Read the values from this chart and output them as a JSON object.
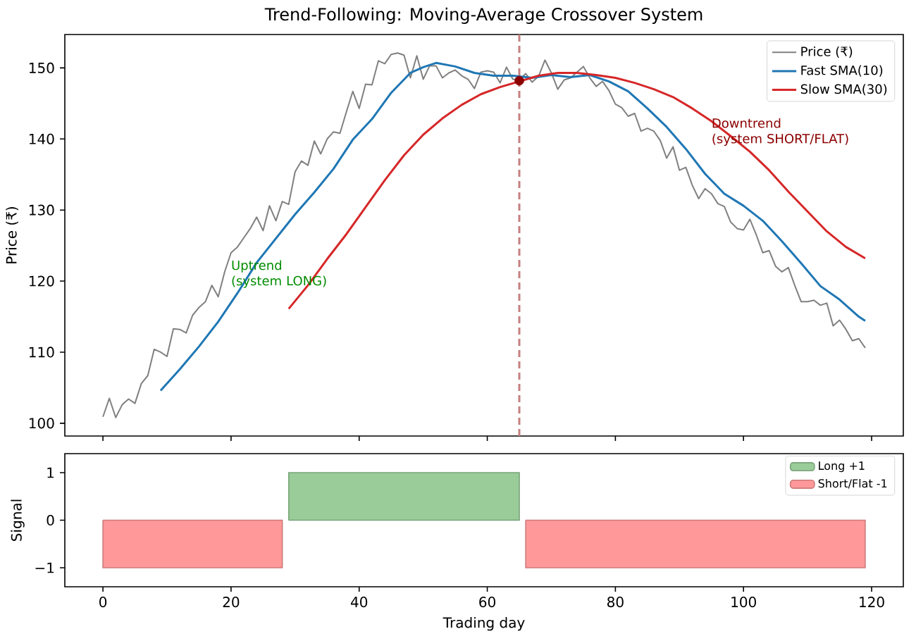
{
  "chart_data": [
    {
      "type": "line",
      "title": "Trend-Following: Moving-Average Crossover System",
      "ylabel": "Price (₹)",
      "x": [
        0,
        1,
        2,
        3,
        4,
        5,
        6,
        7,
        8,
        9,
        10,
        11,
        12,
        13,
        14,
        15,
        16,
        17,
        18,
        19,
        20,
        21,
        22,
        23,
        24,
        25,
        26,
        27,
        28,
        29,
        30,
        31,
        32,
        33,
        34,
        35,
        36,
        37,
        38,
        39,
        40,
        41,
        42,
        43,
        44,
        45,
        46,
        47,
        48,
        49,
        50,
        51,
        52,
        53,
        54,
        55,
        56,
        57,
        58,
        59,
        60,
        61,
        62,
        63,
        64,
        65,
        66,
        67,
        68,
        69,
        70,
        71,
        72,
        73,
        74,
        75,
        76,
        77,
        78,
        79,
        80,
        81,
        82,
        83,
        84,
        85,
        86,
        87,
        88,
        89,
        90,
        91,
        92,
        93,
        94,
        95,
        96,
        97,
        98,
        99,
        100,
        101,
        102,
        103,
        104,
        105,
        106,
        107,
        108,
        109,
        110,
        111,
        112,
        113,
        114,
        115,
        116,
        117,
        118,
        119
      ],
      "series": [
        {
          "name": "Price (₹)",
          "color": "#808080",
          "values": [
            100.9,
            103.5,
            100.8,
            102.6,
            103.4,
            102.8,
            105.6,
            106.7,
            110.4,
            110.0,
            109.4,
            113.3,
            113.2,
            112.7,
            115.2,
            116.3,
            117.1,
            119.4,
            117.8,
            121.3,
            124.0,
            124.8,
            126.1,
            127.4,
            129.0,
            127.1,
            130.6,
            128.5,
            131.2,
            130.8,
            135.4,
            136.9,
            136.3,
            139.7,
            137.9,
            140.0,
            141.0,
            140.8,
            143.8,
            146.7,
            144.3,
            147.7,
            147.6,
            151.0,
            150.6,
            151.9,
            152.1,
            151.8,
            148.6,
            151.7,
            148.4,
            150.3,
            150.3,
            148.6,
            149.3,
            149.7,
            148.9,
            148.4,
            147.1,
            149.4,
            149.6,
            149.4,
            147.9,
            150.1,
            148.4,
            148.3,
            149.2,
            148.0,
            148.8,
            151.1,
            149.3,
            147.0,
            148.3,
            148.6,
            149.4,
            150.2,
            148.6,
            147.4,
            148.1,
            146.8,
            144.9,
            144.4,
            143.2,
            143.6,
            141.1,
            141.5,
            141.1,
            139.8,
            137.3,
            138.9,
            135.6,
            136.0,
            133.5,
            131.6,
            133.0,
            132.3,
            130.9,
            130.5,
            128.3,
            127.4,
            127.2,
            128.7,
            126.5,
            124.0,
            124.3,
            122.1,
            121.3,
            121.9,
            119.4,
            117.1,
            117.1,
            117.3,
            116.6,
            116.9,
            113.7,
            114.5,
            113.2,
            111.6,
            111.9,
            110.6
          ]
        },
        {
          "name": "Fast SMA(10)",
          "color": "#1f77b4",
          "x": [
            9,
            12,
            15,
            18,
            21,
            24,
            27,
            30,
            33,
            36,
            39,
            42,
            45,
            48,
            50,
            52,
            55,
            58,
            61,
            64,
            67,
            70,
            73,
            76,
            79,
            82,
            85,
            88,
            91,
            94,
            97,
            100,
            103,
            106,
            109,
            112,
            115,
            118,
            119
          ],
          "values": [
            104.6,
            107.6,
            110.8,
            114.3,
            118.3,
            122.6,
            126.0,
            129.4,
            132.5,
            135.8,
            139.9,
            142.8,
            146.5,
            149.3,
            150.1,
            150.7,
            150.2,
            149.3,
            148.9,
            148.9,
            148.6,
            149.0,
            148.7,
            149.0,
            148.1,
            146.7,
            144.3,
            141.7,
            138.6,
            135.1,
            132.3,
            130.6,
            128.5,
            125.6,
            122.5,
            119.3,
            117.4,
            115.0,
            114.4
          ]
        },
        {
          "name": "Slow SMA(30)",
          "color": "#d62728",
          "x": [
            29,
            32,
            35,
            38,
            41,
            44,
            47,
            50,
            53,
            56,
            59,
            62,
            65,
            68,
            71,
            74,
            77,
            80,
            83,
            86,
            89,
            92,
            95,
            98,
            101,
            104,
            107,
            110,
            113,
            116,
            119
          ],
          "values": [
            116.1,
            119.4,
            123.1,
            126.6,
            130.4,
            134.2,
            137.7,
            140.6,
            142.9,
            144.8,
            146.3,
            147.3,
            148.1,
            148.9,
            149.3,
            149.3,
            149.0,
            148.6,
            147.9,
            147.0,
            145.9,
            144.3,
            142.5,
            140.4,
            138.2,
            135.6,
            132.6,
            129.8,
            127.0,
            124.8,
            123.2
          ]
        },
        {
          "type": "scatter",
          "color": "#8b0000",
          "x": [
            65
          ],
          "values": [
            148.2
          ]
        }
      ],
      "ref_lines": [
        {
          "axis": "x",
          "value": 65,
          "color": "#c57f7f",
          "line_style": "dashed"
        }
      ],
      "annotations": [
        "Uptrend\n(system LONG)",
        "Downtrend\n(system SHORT/FLAT)"
      ],
      "xlim": [
        -5.95,
        124.95
      ],
      "ylim": [
        98.2,
        154.7
      ],
      "xticks": [
        0,
        20,
        40,
        60,
        80,
        100,
        120
      ],
      "yticks": [
        100,
        110,
        120,
        130,
        140,
        150
      ],
      "tick_labels": "y",
      "legend": "top right"
    },
    {
      "type": "area",
      "xlabel": "Trading day",
      "ylabel": "Signal",
      "x": [
        0,
        1,
        2,
        3,
        4,
        5,
        6,
        7,
        8,
        9,
        10,
        11,
        12,
        13,
        14,
        15,
        16,
        17,
        18,
        19,
        20,
        21,
        22,
        23,
        24,
        25,
        26,
        27,
        28,
        29,
        30,
        31,
        32,
        33,
        34,
        35,
        36,
        37,
        38,
        39,
        40,
        41,
        42,
        43,
        44,
        45,
        46,
        47,
        48,
        49,
        50,
        51,
        52,
        53,
        54,
        55,
        56,
        57,
        58,
        59,
        60,
        61,
        62,
        63,
        64,
        65,
        66,
        67,
        68,
        69,
        70,
        71,
        72,
        73,
        74,
        75,
        76,
        77,
        78,
        79,
        80,
        81,
        82,
        83,
        84,
        85,
        86,
        87,
        88,
        89,
        90,
        91,
        92,
        93,
        94,
        95,
        96,
        97,
        98,
        99,
        100,
        101,
        102,
        103,
        104,
        105,
        106,
        107,
        108,
        109,
        110,
        111,
        112,
        113,
        114,
        115,
        116,
        117,
        118,
        119
      ],
      "series": [
        {
          "name": "Long +1",
          "color": "#99cc99",
          "values": [
            null,
            null,
            null,
            null,
            null,
            null,
            null,
            null,
            null,
            null,
            null,
            null,
            null,
            null,
            null,
            null,
            null,
            null,
            null,
            null,
            null,
            null,
            null,
            null,
            null,
            null,
            null,
            null,
            null,
            1,
            1,
            1,
            1,
            1,
            1,
            1,
            1,
            1,
            1,
            1,
            1,
            1,
            1,
            1,
            1,
            1,
            1,
            1,
            1,
            1,
            1,
            1,
            1,
            1,
            1,
            1,
            1,
            1,
            1,
            1,
            1,
            1,
            1,
            1,
            1,
            1,
            null,
            null,
            null,
            null,
            null,
            null,
            null,
            null,
            null,
            null,
            null,
            null,
            null,
            null,
            null,
            null,
            null,
            null,
            null,
            null,
            null,
            null,
            null,
            null,
            null,
            null,
            null,
            null,
            null,
            null,
            null,
            null,
            null,
            null,
            null,
            null,
            null,
            null,
            null,
            null,
            null,
            null,
            null,
            null,
            null,
            null,
            null,
            null,
            null,
            null,
            null,
            null,
            null,
            null
          ]
        },
        {
          "name": "Short/Flat -1",
          "color": "#ff9999",
          "values": [
            -1,
            -1,
            -1,
            -1,
            -1,
            -1,
            -1,
            -1,
            -1,
            -1,
            -1,
            -1,
            -1,
            -1,
            -1,
            -1,
            -1,
            -1,
            -1,
            -1,
            -1,
            -1,
            -1,
            -1,
            -1,
            -1,
            -1,
            -1,
            -1,
            null,
            null,
            null,
            null,
            null,
            null,
            null,
            null,
            null,
            null,
            null,
            null,
            null,
            null,
            null,
            null,
            null,
            null,
            null,
            null,
            null,
            null,
            null,
            null,
            null,
            null,
            null,
            null,
            null,
            null,
            null,
            null,
            null,
            null,
            null,
            null,
            null,
            -1,
            -1,
            -1,
            -1,
            -1,
            -1,
            -1,
            -1,
            -1,
            -1,
            -1,
            -1,
            -1,
            -1,
            -1,
            -1,
            -1,
            -1,
            -1,
            -1,
            -1,
            -1,
            -1,
            -1,
            -1,
            -1,
            -1,
            -1,
            -1,
            -1,
            -1,
            -1,
            -1,
            -1,
            -1,
            -1,
            -1,
            -1,
            -1,
            -1,
            -1,
            -1,
            -1,
            -1,
            -1,
            -1,
            -1,
            -1,
            -1,
            -1,
            -1,
            -1,
            -1,
            -1
          ]
        }
      ],
      "xlim": [
        -5.95,
        124.95
      ],
      "ylim": [
        -1.4,
        1.4
      ],
      "xticks": [
        0,
        20,
        40,
        60,
        80,
        100,
        120
      ],
      "yticks": [
        {
          "value": -1,
          "label": "−1"
        },
        0,
        1
      ],
      "legend": "top right"
    }
  ]
}
